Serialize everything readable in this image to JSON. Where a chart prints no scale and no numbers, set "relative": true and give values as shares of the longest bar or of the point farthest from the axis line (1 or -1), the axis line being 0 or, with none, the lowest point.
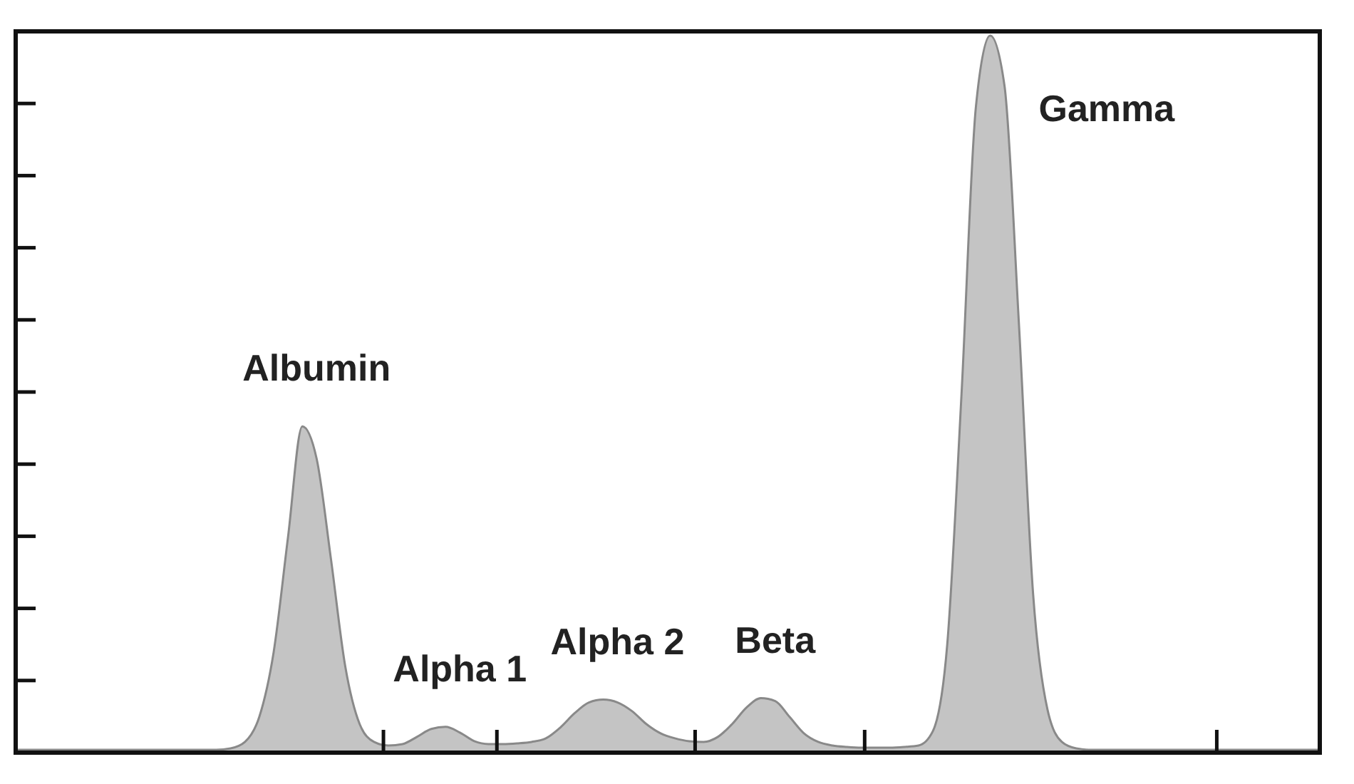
{
  "chart_data": {
    "type": "area",
    "relative": true,
    "categories": [
      null,
      null,
      null,
      null,
      null,
      null,
      null,
      null,
      null,
      null,
      null,
      null,
      null,
      null,
      null,
      null,
      null,
      null,
      null,
      null,
      null,
      null,
      null,
      null,
      null,
      null,
      null,
      null,
      null,
      null,
      null,
      null,
      null,
      null,
      null,
      null,
      null,
      null,
      null,
      null,
      null,
      null,
      null,
      null,
      null,
      null,
      null,
      null,
      null,
      null,
      null,
      null,
      null,
      null,
      null,
      null,
      null,
      null,
      null,
      null,
      null,
      null,
      null,
      null,
      null,
      null,
      null,
      null,
      null,
      null,
      null,
      null,
      null,
      null,
      null,
      null,
      null,
      null,
      null,
      null,
      null,
      null,
      null,
      null,
      null,
      null,
      null,
      null,
      null,
      null,
      null,
      null
    ],
    "series": [
      {
        "color": "#c4c4c4",
        "values": [
          0.004,
          0.004,
          0.004,
          0.004,
          0.004,
          0.004,
          0.004,
          0.004,
          0.004,
          0.004,
          0.004,
          0.004,
          0.004,
          0.004,
          0.004,
          0.006,
          0.015,
          0.05,
          0.14,
          0.3,
          0.455,
          0.41,
          0.27,
          0.12,
          0.04,
          0.015,
          0.01,
          0.012,
          0.022,
          0.033,
          0.036,
          0.028,
          0.016,
          0.012,
          0.012,
          0.013,
          0.015,
          0.02,
          0.035,
          0.055,
          0.07,
          0.074,
          0.07,
          0.058,
          0.04,
          0.027,
          0.02,
          0.016,
          0.015,
          0.022,
          0.04,
          0.063,
          0.076,
          0.072,
          0.05,
          0.027,
          0.015,
          0.01,
          0.008,
          0.007,
          0.007,
          0.007,
          0.008,
          0.01,
          0.03,
          0.15,
          0.5,
          0.9,
          1,
          0.93,
          0.6,
          0.22,
          0.06,
          0.015,
          0.006,
          0.004,
          0.004,
          0.004,
          0.004,
          0.004,
          0.004,
          0.004,
          0.004,
          0.004,
          0.004,
          0.004,
          0.004,
          0.004,
          0.004,
          0.004,
          0.004,
          0.004
        ]
      }
    ],
    "annotations": [
      "Albumin",
      "Alpha 1",
      "Alpha 2",
      "Beta",
      "Gamma"
    ]
  }
}
